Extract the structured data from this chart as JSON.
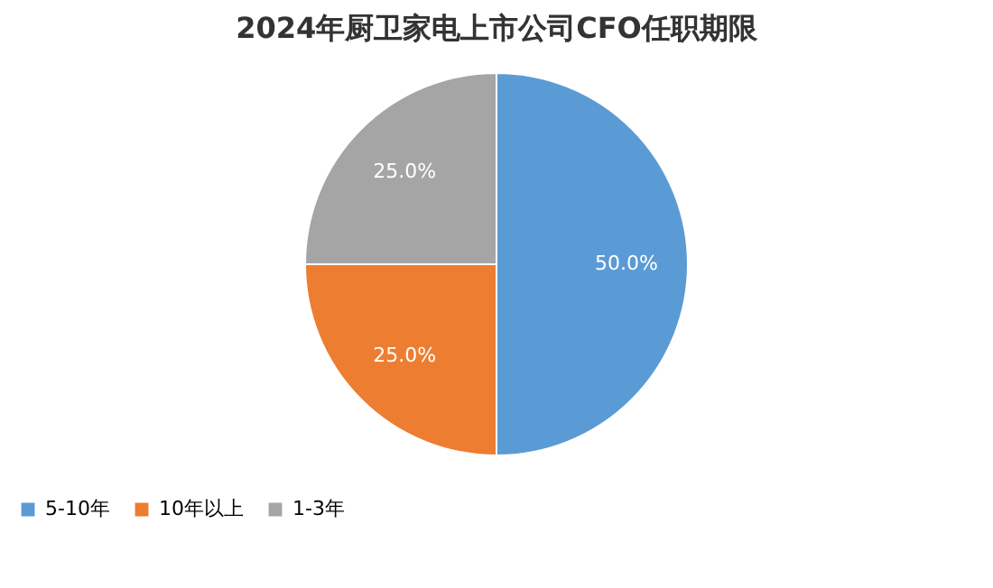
{
  "chart_data": {
    "type": "pie",
    "title": "2024年厨卫家电上市公司CFO任职期限",
    "categories": [
      "5-10年",
      "10年以上",
      "1-3年"
    ],
    "values": [
      50,
      25,
      25
    ],
    "colors": [
      "#5b9bd5",
      "#ed7d31",
      "#a5a5a5"
    ],
    "value_labels": [
      "50.0%",
      "25.0%",
      "25.0%"
    ],
    "legend": "bottom"
  }
}
